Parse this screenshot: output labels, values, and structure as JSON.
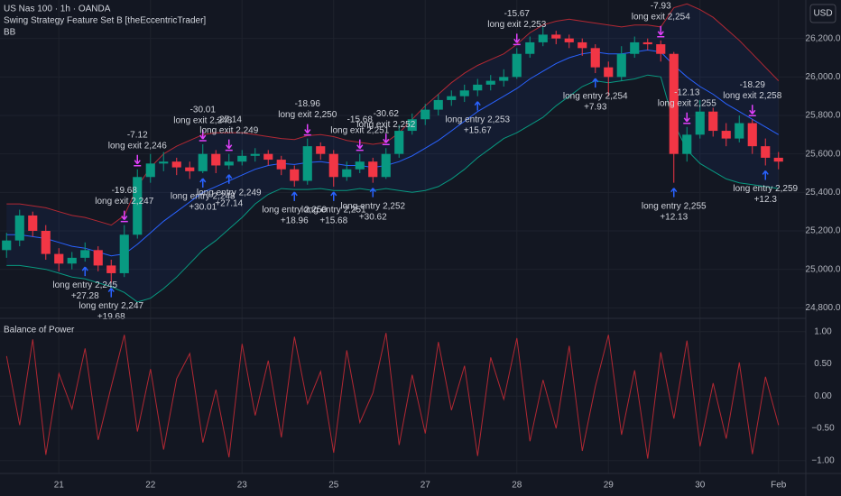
{
  "chart_data": [
    {
      "type": "candlestick",
      "title": "US Nas 100 · 1h · OANDA",
      "subtitle": "Swing Strategy Feature Set B [theEccentricTrader]",
      "indicator": "BB",
      "currency": "USD",
      "up_color": "#089981",
      "down_color": "#f23645",
      "ylim": [
        24750,
        26400
      ],
      "yticks": [
        {
          "value": 24800,
          "label": "24,800.0"
        },
        {
          "value": 25000,
          "label": "25,000.0"
        },
        {
          "value": 25200,
          "label": "25,200.0"
        },
        {
          "value": 25400,
          "label": "25,400.0"
        },
        {
          "value": 25600,
          "label": "25,600.0"
        },
        {
          "value": 25800,
          "label": "25,800.0"
        },
        {
          "value": 26000,
          "label": "26,000.0"
        },
        {
          "value": 26200,
          "label": "26,200.0"
        }
      ],
      "candles": [
        [
          25100,
          25190,
          25060,
          25150
        ],
        [
          25150,
          25310,
          25120,
          25280
        ],
        [
          25280,
          25300,
          25170,
          25200
        ],
        [
          25200,
          25230,
          25050,
          25080
        ],
        [
          25080,
          25110,
          24990,
          25030
        ],
        [
          25030,
          25090,
          25000,
          25060
        ],
        [
          25060,
          25140,
          25040,
          25100
        ],
        [
          25100,
          25120,
          24990,
          25020
        ],
        [
          25020,
          25050,
          24930,
          24980
        ],
        [
          24980,
          25230,
          24960,
          25180
        ],
        [
          25180,
          25520,
          25160,
          25480
        ],
        [
          25480,
          25600,
          25450,
          25550
        ],
        [
          25550,
          25610,
          25510,
          25560
        ],
        [
          25560,
          25580,
          25490,
          25530
        ],
        [
          25530,
          25560,
          25470,
          25510
        ],
        [
          25510,
          25650,
          25500,
          25600
        ],
        [
          25600,
          25620,
          25500,
          25540
        ],
        [
          25540,
          25600,
          25520,
          25560
        ],
        [
          25560,
          25620,
          25540,
          25590
        ],
        [
          25590,
          25630,
          25560,
          25600
        ],
        [
          25600,
          25620,
          25540,
          25570
        ],
        [
          25570,
          25590,
          25490,
          25520
        ],
        [
          25520,
          25540,
          25430,
          25460
        ],
        [
          25460,
          25680,
          25440,
          25640
        ],
        [
          25640,
          25660,
          25570,
          25600
        ],
        [
          25600,
          25620,
          25430,
          25480
        ],
        [
          25480,
          25560,
          25460,
          25520
        ],
        [
          25520,
          25600,
          25500,
          25560
        ],
        [
          25560,
          25580,
          25450,
          25480
        ],
        [
          25480,
          25630,
          25470,
          25600
        ],
        [
          25600,
          25750,
          25580,
          25720
        ],
        [
          25720,
          25810,
          25700,
          25780
        ],
        [
          25780,
          25860,
          25750,
          25830
        ],
        [
          25830,
          25910,
          25800,
          25880
        ],
        [
          25880,
          25930,
          25850,
          25900
        ],
        [
          25900,
          25960,
          25870,
          25930
        ],
        [
          25930,
          25990,
          25900,
          25960
        ],
        [
          25960,
          26010,
          25930,
          25980
        ],
        [
          25980,
          26040,
          25950,
          26000
        ],
        [
          26000,
          26150,
          25990,
          26120
        ],
        [
          26120,
          26210,
          26100,
          26180
        ],
        [
          26180,
          26260,
          26160,
          26220
        ],
        [
          26220,
          26240,
          26170,
          26200
        ],
        [
          26200,
          26220,
          26150,
          26180
        ],
        [
          26180,
          26200,
          26110,
          26150
        ],
        [
          26150,
          26170,
          26020,
          26050
        ],
        [
          26050,
          26080,
          25900,
          26000
        ],
        [
          26000,
          26160,
          25980,
          26120
        ],
        [
          26120,
          26210,
          26100,
          26180
        ],
        [
          26180,
          26200,
          26140,
          26170
        ],
        [
          26170,
          26190,
          26080,
          26120
        ],
        [
          26120,
          26130,
          25450,
          25600
        ],
        [
          25600,
          25740,
          25560,
          25700
        ],
        [
          25700,
          25880,
          25680,
          25820
        ],
        [
          25820,
          25840,
          25690,
          25720
        ],
        [
          25720,
          25760,
          25640,
          25680
        ],
        [
          25680,
          25800,
          25660,
          25760
        ],
        [
          25760,
          25780,
          25600,
          25640
        ],
        [
          25640,
          25680,
          25540,
          25580
        ],
        [
          25580,
          25610,
          25520,
          25560
        ]
      ],
      "bb_upper": [
        25340,
        25340,
        25330,
        25320,
        25300,
        25280,
        25270,
        25250,
        25230,
        25280,
        25430,
        25530,
        25600,
        25640,
        25670,
        25700,
        25710,
        25710,
        25710,
        25700,
        25690,
        25680,
        25675,
        25695,
        25700,
        25690,
        25670,
        25660,
        25650,
        25660,
        25710,
        25780,
        25850,
        25910,
        25970,
        26020,
        26060,
        26090,
        26120,
        26170,
        26230,
        26270,
        26290,
        26300,
        26290,
        26280,
        26270,
        26260,
        26270,
        26270,
        26260,
        26360,
        26380,
        26350,
        26310,
        26250,
        26190,
        26120,
        26050,
        25980
      ],
      "bb_basis": [
        25180,
        25180,
        25170,
        25160,
        25140,
        25120,
        25110,
        25090,
        25070,
        25080,
        25130,
        25190,
        25250,
        25300,
        25350,
        25400,
        25430,
        25460,
        25490,
        25520,
        25540,
        25550,
        25545,
        25555,
        25560,
        25550,
        25540,
        25540,
        25530,
        25540,
        25560,
        25590,
        25630,
        25670,
        25720,
        25770,
        25820,
        25860,
        25900,
        25940,
        25990,
        26030,
        26070,
        26100,
        26120,
        26130,
        26120,
        26120,
        26130,
        26140,
        26130,
        26060,
        26000,
        25950,
        25910,
        25860,
        25820,
        25780,
        25740,
        25700
      ],
      "bb_lower": [
        25020,
        25020,
        25010,
        25000,
        24980,
        24960,
        24950,
        24930,
        24910,
        24880,
        24830,
        24850,
        24900,
        24960,
        25030,
        25100,
        25150,
        25210,
        25270,
        25340,
        25390,
        25420,
        25415,
        25415,
        25420,
        25410,
        25410,
        25420,
        25410,
        25420,
        25410,
        25400,
        25410,
        25430,
        25470,
        25520,
        25580,
        25630,
        25680,
        25710,
        25750,
        25790,
        25850,
        25900,
        25950,
        25980,
        25970,
        25980,
        25990,
        26010,
        26000,
        25760,
        25620,
        25550,
        25510,
        25470,
        25450,
        25440,
        25430,
        25420
      ],
      "bb_colors": {
        "upper": "#b22833",
        "basis": "#2962ff",
        "lower": "#089981"
      },
      "entries": [
        {
          "bar": 6,
          "label": "long entry 2,245",
          "profit": "+27.28"
        },
        {
          "bar": 8,
          "label": "long entry 2,247",
          "profit": "+19.68"
        },
        {
          "bar": 15,
          "label": "long entry 2,248",
          "profit": "+30.01"
        },
        {
          "bar": 17,
          "label": "long entry 2,249",
          "profit": "+27.14"
        },
        {
          "bar": 22,
          "label": "long entry 2,250",
          "profit": "+18.96"
        },
        {
          "bar": 25,
          "label": "long entry 2,251",
          "profit": "+15.68"
        },
        {
          "bar": 28,
          "label": "long entry 2,252",
          "profit": "+30.62"
        },
        {
          "bar": 36,
          "label": "long entry 2,253",
          "profit": "+15.67"
        },
        {
          "bar": 45,
          "label": "long entry 2,254",
          "profit": "+7.93"
        },
        {
          "bar": 51,
          "label": "long entry 2,255",
          "profit": "+12.13"
        },
        {
          "bar": 58,
          "label": "long entry 2,259",
          "profit": "+12.3"
        }
      ],
      "exits": [
        {
          "bar": 9,
          "profit": "-19.68",
          "label": "long exit 2,247"
        },
        {
          "bar": 10,
          "profit": "-7.12",
          "label": "long exit 2,246"
        },
        {
          "bar": 15,
          "profit": "-30.01",
          "label": "long exit 2,248"
        },
        {
          "bar": 17,
          "profit": "-27.14",
          "label": "long exit 2,249"
        },
        {
          "bar": 23,
          "profit": "-18.96",
          "label": "long exit 2,250"
        },
        {
          "bar": 27,
          "profit": "-15.68",
          "label": "long exit 2,251"
        },
        {
          "bar": 29,
          "profit": "-30.62",
          "label": "long exit 2,252"
        },
        {
          "bar": 39,
          "profit": "-15.67",
          "label": "long exit 2,253"
        },
        {
          "bar": 50,
          "profit": "-7.93",
          "label": "long exit 2,254"
        },
        {
          "bar": 52,
          "profit": "-12.13",
          "label": "long exit 2,255"
        },
        {
          "bar": 57,
          "profit": "-18.29",
          "label": "long exit 2,258"
        }
      ]
    },
    {
      "type": "line",
      "title": "Balance of Power",
      "color": "#b22833",
      "values": [
        0.62,
        -0.45,
        0.88,
        -0.91,
        0.35,
        -0.2,
        0.74,
        -0.68,
        0.15,
        0.95,
        -0.55,
        0.42,
        -0.83,
        0.27,
        0.66,
        -0.72,
        0.1,
        -0.95,
        0.81,
        -0.3,
        0.55,
        -0.64,
        0.92,
        -0.12,
        0.38,
        -0.88,
        0.71,
        -0.41,
        0.05,
        0.98,
        -0.76,
        0.33,
        -0.58,
        0.84,
        -0.22,
        0.47,
        -0.93,
        0.6,
        -0.05,
        0.9,
        -0.7,
        0.25,
        -0.5,
        0.78,
        -0.85,
        0.15,
        0.95,
        -0.6,
        0.4,
        -0.97,
        0.68,
        -0.35,
        0.86,
        -0.78,
        0.2,
        -0.66,
        0.52,
        -0.9,
        0.3,
        -0.45
      ],
      "ylim": [
        -1.2,
        1.15
      ],
      "yticks": [
        {
          "value": 1,
          "label": "1.00"
        },
        {
          "value": 0.5,
          "label": "0.50"
        },
        {
          "value": 0,
          "label": "0.00"
        },
        {
          "value": -0.5,
          "label": "−0.50"
        },
        {
          "value": -1,
          "label": "−1.00"
        }
      ],
      "xticks": [
        {
          "value": 4,
          "label": "21"
        },
        {
          "value": 11,
          "label": "22"
        },
        {
          "value": 18,
          "label": "23"
        },
        {
          "value": 25,
          "label": "25"
        },
        {
          "value": 32,
          "label": "27"
        },
        {
          "value": 39,
          "label": "28"
        },
        {
          "value": 46,
          "label": "29"
        },
        {
          "value": 53,
          "label": "30"
        },
        {
          "value": 59,
          "label": "Feb"
        }
      ]
    }
  ]
}
